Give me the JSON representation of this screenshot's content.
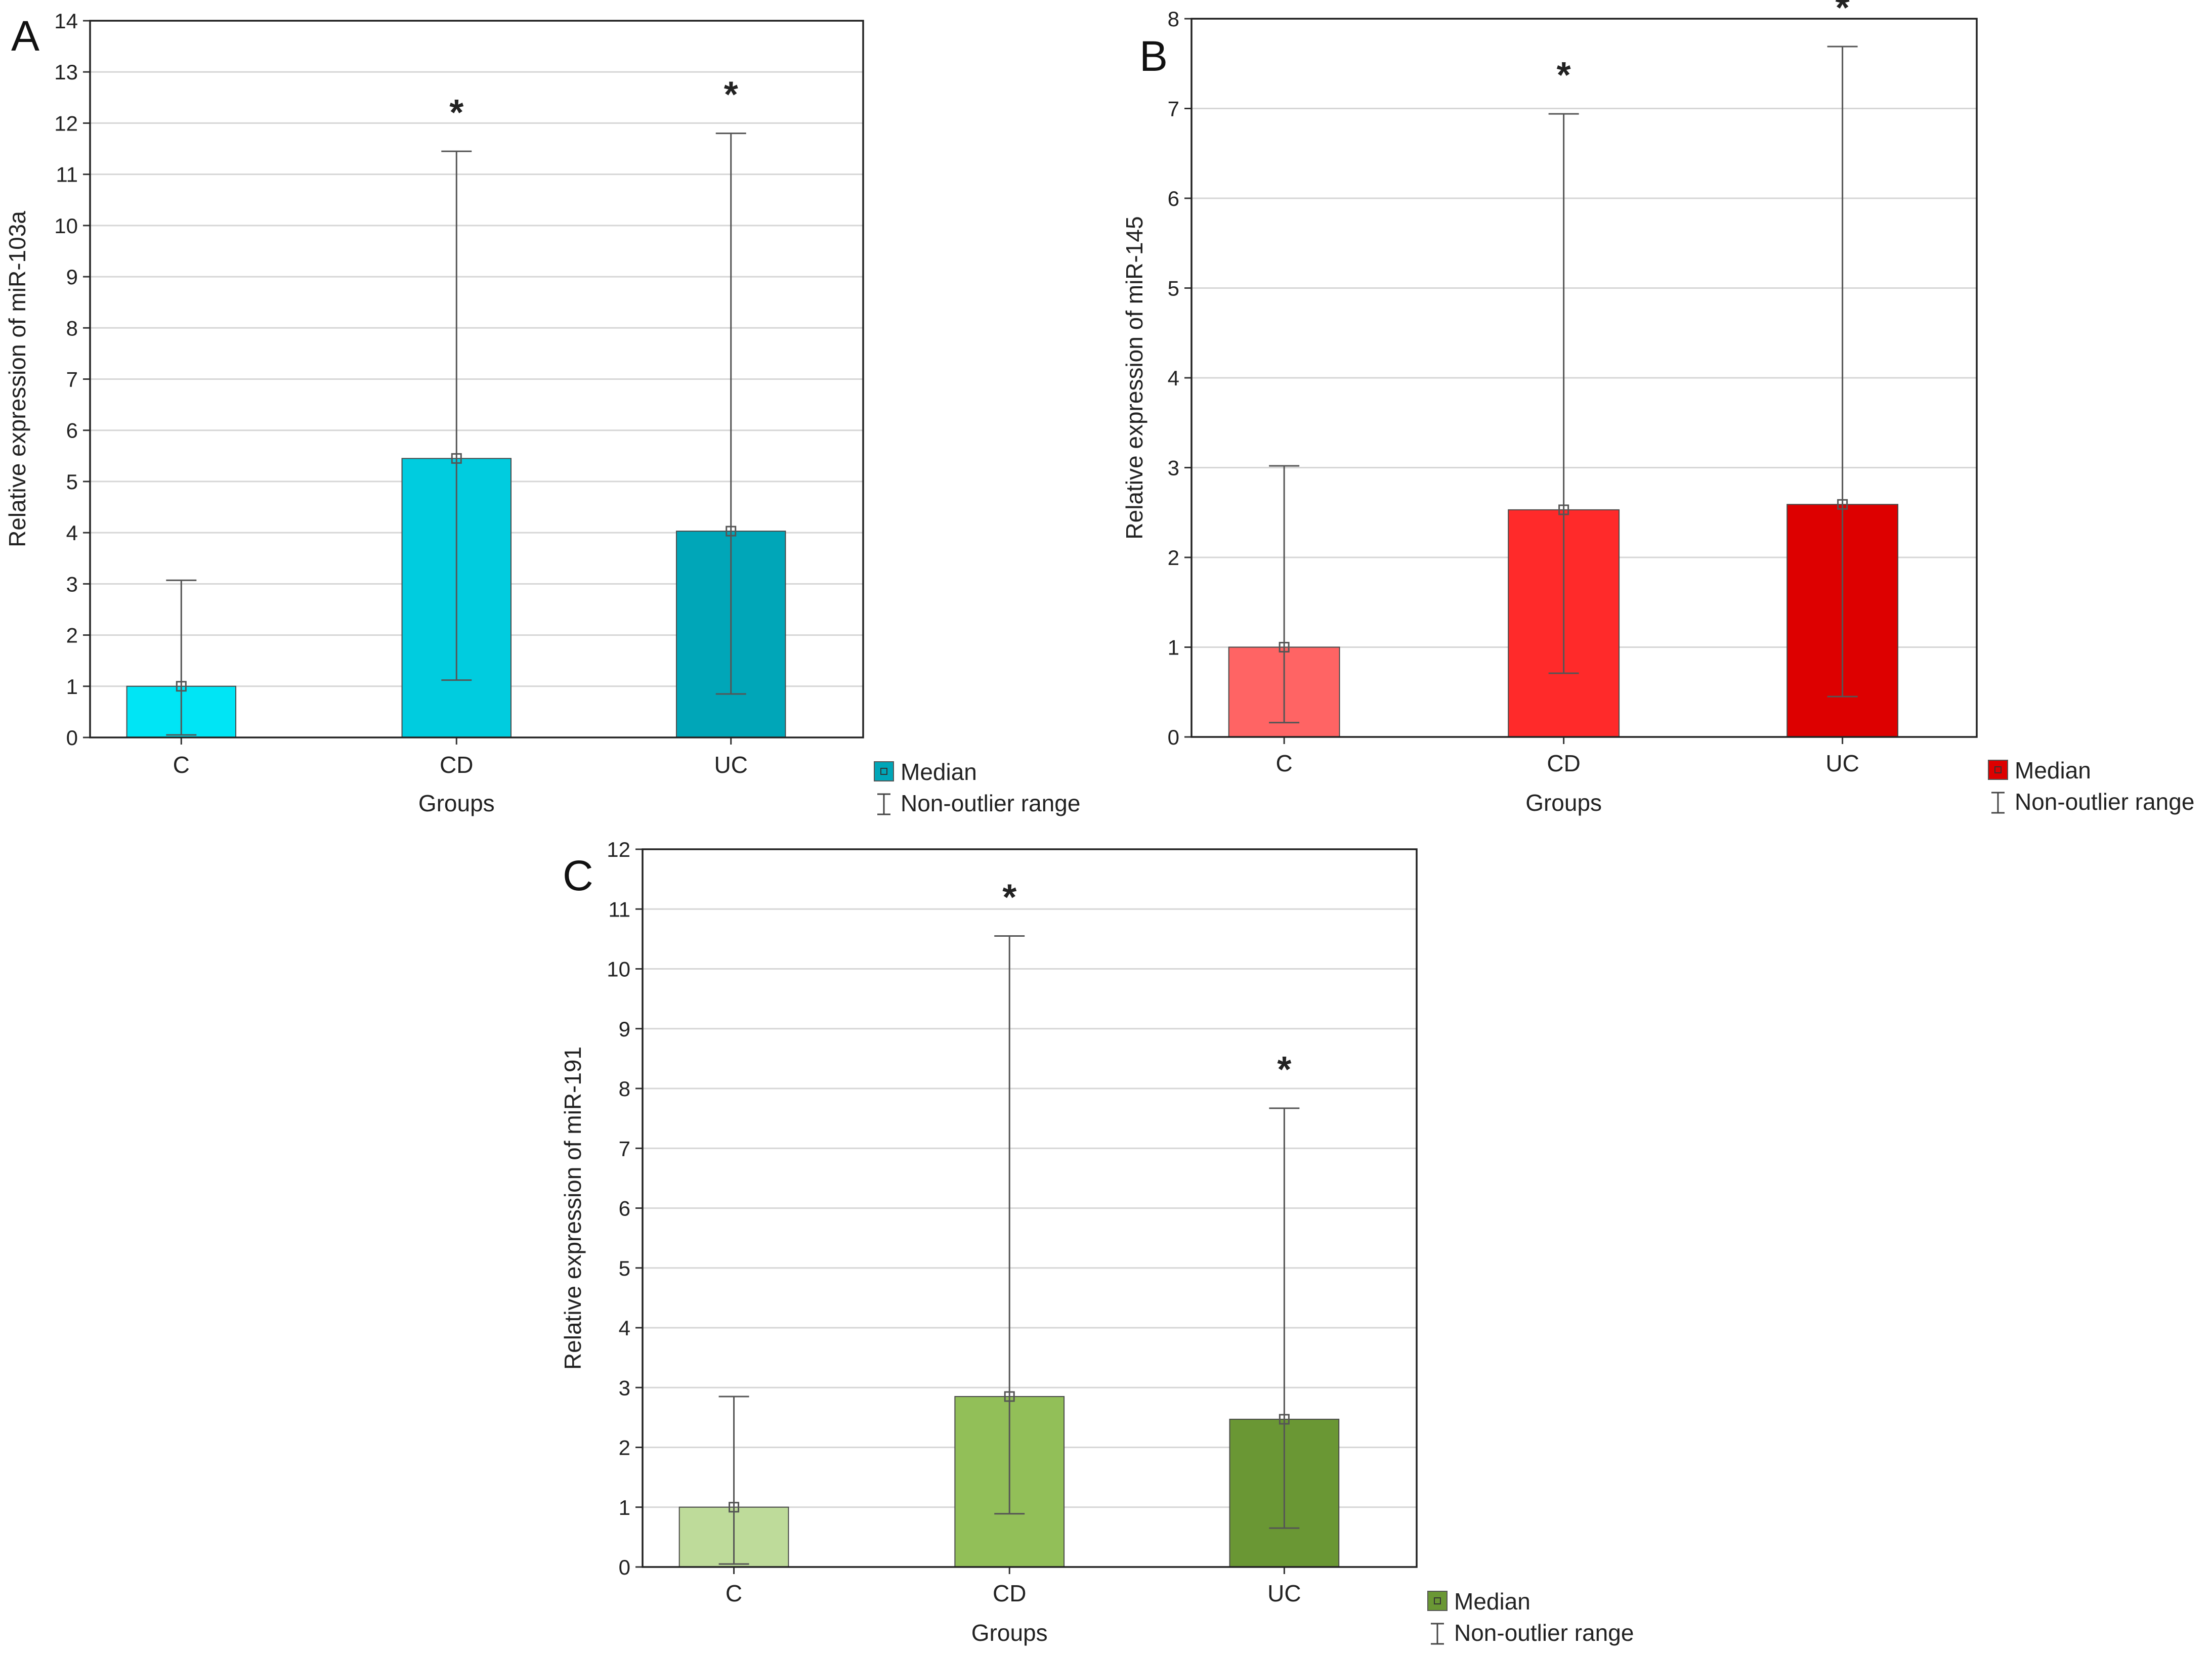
{
  "chart_data": [
    {
      "type": "bar",
      "panel": "A",
      "xlabel": "Groups",
      "ylabel": "Relative expression of miR-103a",
      "ylim": [
        0,
        14
      ],
      "yticks": [
        0,
        1,
        2,
        3,
        4,
        5,
        6,
        7,
        8,
        9,
        10,
        11,
        12,
        13,
        14
      ],
      "categories": [
        "C",
        "CD",
        "UC"
      ],
      "values": [
        1.0,
        5.45,
        4.03
      ],
      "whisker_low": [
        0.05,
        1.12,
        0.85
      ],
      "whisker_high": [
        3.07,
        11.45,
        11.8
      ],
      "significance": [
        "",
        "*",
        "*"
      ],
      "colors": [
        "#00e5f5",
        "#00ccdf",
        "#00a6b8"
      ],
      "legend": {
        "median": "Median",
        "range": "Non-outlier range"
      }
    },
    {
      "type": "bar",
      "panel": "B",
      "xlabel": "Groups",
      "ylabel": "Relative expression of miR-145",
      "ylim": [
        0,
        8
      ],
      "yticks": [
        0,
        1,
        2,
        3,
        4,
        5,
        6,
        7,
        8
      ],
      "categories": [
        "C",
        "CD",
        "UC"
      ],
      "values": [
        1.0,
        2.53,
        2.59
      ],
      "whisker_low": [
        0.16,
        0.71,
        0.45
      ],
      "whisker_high": [
        3.02,
        6.94,
        7.69
      ],
      "significance": [
        "",
        "*",
        "*"
      ],
      "colors": [
        "#ff6464",
        "#ff2a2a",
        "#dd0000"
      ],
      "legend": {
        "median": "Median",
        "range": "Non-outlier range"
      }
    },
    {
      "type": "bar",
      "panel": "C",
      "xlabel": "Groups",
      "ylabel": "Relative expression of miR-191",
      "ylim": [
        0,
        12
      ],
      "yticks": [
        0,
        1,
        2,
        3,
        4,
        5,
        6,
        7,
        8,
        9,
        10,
        11,
        12
      ],
      "categories": [
        "C",
        "CD",
        "UC"
      ],
      "values": [
        1.0,
        2.85,
        2.47
      ],
      "whisker_low": [
        0.05,
        0.89,
        0.65
      ],
      "whisker_high": [
        2.85,
        10.55,
        7.67
      ],
      "significance": [
        "",
        "*",
        "*"
      ],
      "colors": [
        "#bedb9a",
        "#92bf58",
        "#6a9734"
      ],
      "legend": {
        "median": "Median",
        "range": "Non-outlier range"
      }
    }
  ]
}
